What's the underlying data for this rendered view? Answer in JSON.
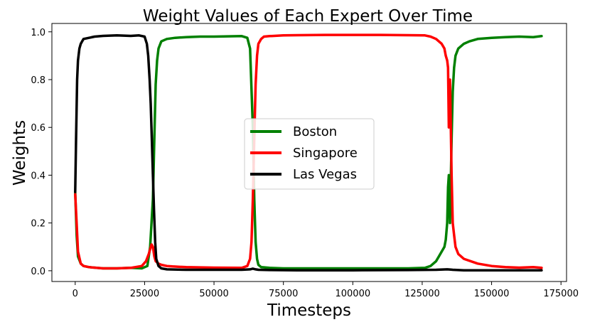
{
  "chart_data": {
    "type": "line",
    "title": "Weight Values of Each Expert Over Time",
    "xlabel": "Timesteps",
    "ylabel": "Weights",
    "xlim": [
      -8400,
      177000
    ],
    "ylim": [
      -0.045,
      1.035
    ],
    "xticks": [
      0,
      25000,
      50000,
      75000,
      100000,
      125000,
      150000,
      175000
    ],
    "xtick_labels": [
      "0",
      "25000",
      "50000",
      "75000",
      "100000",
      "125000",
      "150000",
      "175000"
    ],
    "yticks": [
      0.0,
      0.2,
      0.4,
      0.6,
      0.8,
      1.0
    ],
    "ytick_labels": [
      "0.0",
      "0.2",
      "0.4",
      "0.6",
      "0.8",
      "1.0"
    ],
    "grid": false,
    "legend_position": "center",
    "series": [
      {
        "name": "Boston",
        "color": "#008000",
        "x": [
          0,
          500,
          1000,
          2000,
          3000,
          5000,
          10000,
          15000,
          20000,
          24000,
          26000,
          27000,
          28000,
          28500,
          29000,
          29500,
          30000,
          31000,
          33000,
          36000,
          40000,
          45000,
          50000,
          55000,
          60000,
          62000,
          63000,
          64000,
          64500,
          65000,
          65500,
          66000,
          67000,
          70000,
          75000,
          80000,
          90000,
          100000,
          110000,
          120000,
          126000,
          128000,
          130000,
          131000,
          132000,
          133000,
          133500,
          134000,
          134300,
          134600,
          135000,
          135300,
          135600,
          136000,
          136500,
          137000,
          138000,
          140000,
          142000,
          145000,
          150000,
          155000,
          160000,
          165000,
          168000
        ],
        "values": [
          0.33,
          0.15,
          0.06,
          0.03,
          0.02,
          0.015,
          0.01,
          0.01,
          0.012,
          0.01,
          0.02,
          0.1,
          0.3,
          0.55,
          0.78,
          0.88,
          0.93,
          0.96,
          0.97,
          0.975,
          0.978,
          0.98,
          0.98,
          0.981,
          0.982,
          0.975,
          0.93,
          0.6,
          0.3,
          0.12,
          0.05,
          0.025,
          0.015,
          0.012,
          0.01,
          0.01,
          0.01,
          0.01,
          0.01,
          0.01,
          0.012,
          0.02,
          0.04,
          0.06,
          0.08,
          0.1,
          0.13,
          0.2,
          0.35,
          0.4,
          0.2,
          0.38,
          0.55,
          0.75,
          0.85,
          0.9,
          0.93,
          0.95,
          0.96,
          0.97,
          0.975,
          0.978,
          0.98,
          0.978,
          0.982
        ]
      },
      {
        "name": "Singapore",
        "color": "#ff0000",
        "x": [
          0,
          500,
          1000,
          2000,
          3000,
          5000,
          10000,
          15000,
          20000,
          24000,
          25500,
          26500,
          27000,
          27500,
          28000,
          28500,
          29000,
          30000,
          31000,
          33000,
          35000,
          40000,
          50000,
          60000,
          62000,
          63000,
          63500,
          64000,
          64500,
          65000,
          65500,
          66000,
          67000,
          68000,
          70000,
          75000,
          80000,
          90000,
          100000,
          110000,
          120000,
          126000,
          128000,
          130000,
          131000,
          132000,
          133000,
          133500,
          134000,
          134300,
          134600,
          135000,
          135300,
          135600,
          136000,
          136500,
          137000,
          138000,
          140000,
          145000,
          150000,
          155000,
          160000,
          165000,
          168000
        ],
        "values": [
          0.32,
          0.2,
          0.08,
          0.03,
          0.02,
          0.015,
          0.01,
          0.01,
          0.012,
          0.02,
          0.04,
          0.07,
          0.09,
          0.11,
          0.1,
          0.06,
          0.04,
          0.03,
          0.025,
          0.02,
          0.018,
          0.015,
          0.013,
          0.012,
          0.02,
          0.05,
          0.12,
          0.3,
          0.55,
          0.78,
          0.9,
          0.95,
          0.97,
          0.98,
          0.982,
          0.985,
          0.986,
          0.987,
          0.987,
          0.987,
          0.986,
          0.985,
          0.98,
          0.97,
          0.96,
          0.95,
          0.93,
          0.9,
          0.88,
          0.85,
          0.6,
          0.8,
          0.6,
          0.4,
          0.2,
          0.15,
          0.1,
          0.07,
          0.05,
          0.03,
          0.02,
          0.015,
          0.013,
          0.015,
          0.012
        ]
      },
      {
        "name": "Las Vegas",
        "color": "#000000",
        "x": [
          0,
          300,
          700,
          1000,
          1500,
          2000,
          3000,
          5000,
          7000,
          10000,
          15000,
          20000,
          23000,
          25000,
          25800,
          26300,
          26800,
          27200,
          27600,
          28000,
          28400,
          28800,
          29200,
          30000,
          31000,
          33000,
          40000,
          50000,
          60000,
          63000,
          64000,
          65000,
          66000,
          70000,
          80000,
          100000,
          120000,
          130000,
          134000,
          136000,
          140000,
          150000,
          160000,
          168000
        ],
        "values": [
          0.33,
          0.55,
          0.8,
          0.88,
          0.93,
          0.95,
          0.97,
          0.975,
          0.98,
          0.983,
          0.985,
          0.983,
          0.985,
          0.98,
          0.95,
          0.9,
          0.8,
          0.7,
          0.55,
          0.4,
          0.25,
          0.12,
          0.05,
          0.02,
          0.01,
          0.006,
          0.004,
          0.004,
          0.004,
          0.006,
          0.009,
          0.006,
          0.004,
          0.003,
          0.002,
          0.002,
          0.003,
          0.004,
          0.006,
          0.004,
          0.002,
          0.002,
          0.002,
          0.002
        ]
      }
    ]
  }
}
